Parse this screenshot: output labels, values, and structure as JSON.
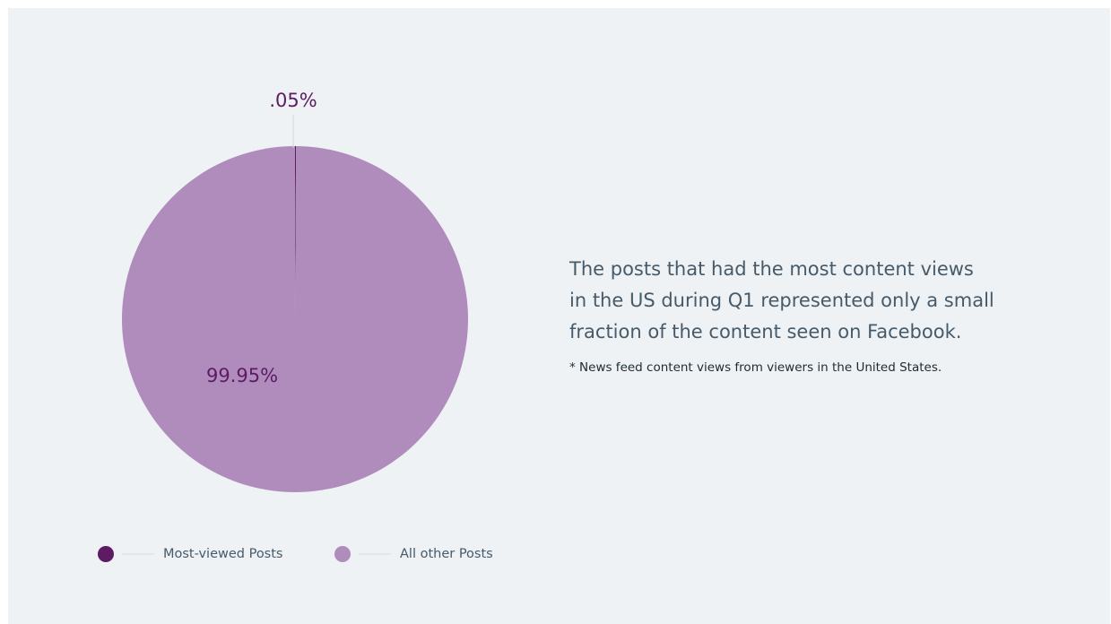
{
  "chart_data": {
    "type": "pie",
    "slices": [
      {
        "name": "Most-viewed Posts",
        "value": 0.05,
        "label": ".05%",
        "color": "#5c1b63"
      },
      {
        "name": "All other Posts",
        "value": 99.95,
        "label": "99.95%",
        "color": "#b08cbd"
      }
    ],
    "legend": {
      "placement": "bottom-left",
      "items": [
        {
          "label": "Most-viewed Posts",
          "color": "#5c1b63"
        },
        {
          "label": "All other Posts",
          "color": "#b08cbd"
        }
      ]
    }
  },
  "callout": {
    "headline": "The posts that had the most content views\nin the US during Q1 represented only a small\nfraction of the content seen on Facebook.",
    "footnote": "* News feed content views from viewers in the United States."
  },
  "colors": {
    "background": "#eff2f5",
    "label_text": "#5c1b63",
    "headline_text": "#465a69",
    "legend_text": "#465a69",
    "leader_line": "#cfd6dc"
  }
}
